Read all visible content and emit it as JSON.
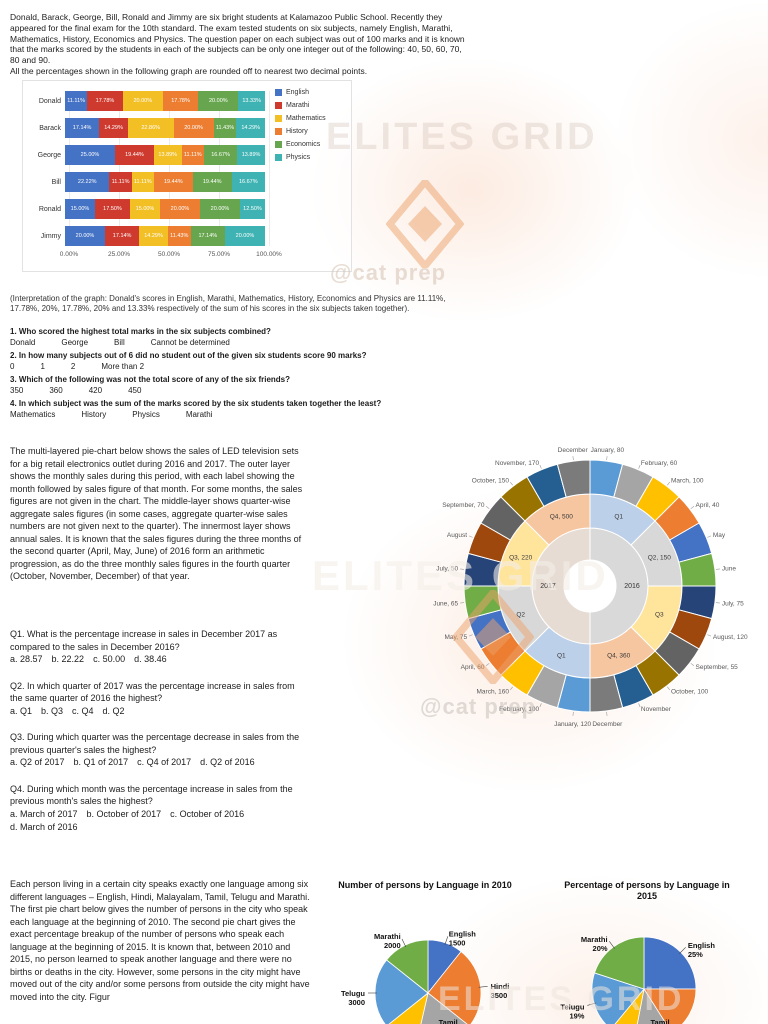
{
  "watermarks": {
    "brand": "ELITES GRID",
    "handle": "@cat prep"
  },
  "section_students": {
    "intro": "Donald, Barack, George, Bill, Ronald and Jimmy are six bright students at Kalamazoo Public School. Recently they appeared for the final exam for the 10th standard. The exam tested students on six subjects, namely English, Marathi, Mathematics, History, Economics and Physics. The question paper on each subject was out of 100 marks and it is known that the marks scored by the students in each of the subjects can be only one integer out of the following: 40, 50, 60, 70, 80 and 90.",
    "note": "All the percentages shown in the following graph are rounded off to nearest two decimal points.",
    "interpretation": "(Interpretation of the graph: Donald's scores in English, Marathi, Mathematics, History, Economics and Physics are 11.11%, 17.78%, 20%, 17.78%, 20% and 13.33% respectively of the sum of his scores in the six subjects taken together).",
    "questions": [
      {
        "text": "1. Who scored the highest total marks in the six subjects combined?",
        "options": [
          "Donald",
          "George",
          "Bill",
          "Cannot be determined"
        ]
      },
      {
        "text": "2. In how many subjects out of 6 did no student out of the given six students score 90 marks?",
        "options": [
          "0",
          "1",
          "2",
          "More than 2"
        ]
      },
      {
        "text": "3. Which of the following was not the total score of any of the six friends?",
        "options": [
          "350",
          "360",
          "420",
          "450"
        ]
      },
      {
        "text": "4. In which subject was the sum of the marks scored by the six students taken together the least?",
        "options": [
          "Mathematics",
          "History",
          "Physics",
          "Marathi"
        ]
      }
    ]
  },
  "section_tv": {
    "paragraph": "The multi-layered pie-chart below shows the sales of LED television sets for a big retail electronics outlet during 2016 and 2017. The outer layer shows the monthly sales during this period, with each label showing the month followed by sales figure of that month. For some months, the sales figures are not given in the chart. The middle-layer shows quarter-wise aggregate sales figures (in some cases, aggregate quarter-wise sales numbers are not given next to the quarter). The innermost layer shows annual sales. It is known that the sales figures during the three months of the second quarter (April, May, June) of 2016 form an arithmetic progression, as do the three monthly sales figures in the fourth quarter (October, November, December) of that year.",
    "questions": [
      {
        "text": "Q1. What is the percentage increase in sales in December 2017 as compared to the sales in December 2016?",
        "options": [
          "a. 28.57",
          "b. 22.22",
          "c. 50.00",
          "d. 38.46"
        ]
      },
      {
        "text": "Q2. In which quarter of 2017 was the percentage increase in sales from the same quarter of 2016 the highest?",
        "options": [
          "a. Q1",
          "b. Q3",
          "c. Q4",
          "d. Q2"
        ]
      },
      {
        "text": "Q3. During which quarter was the percentage decrease in sales from the previous quarter's sales the highest?",
        "options": [
          "a. Q2 of 2017",
          "b. Q1 of 2017",
          "c. Q4 of 2017",
          "d. Q2 of 2016"
        ]
      },
      {
        "text": "Q4. During which month was the percentage increase in sales from the previous month's sales the highest?",
        "options": [
          "a. March of 2017",
          "b. October of 2017",
          "c. October of 2016",
          "d. March of 2016"
        ]
      }
    ]
  },
  "section_language": {
    "paragraph": "Each person living in a certain city speaks exactly one language among six different languages – English, Hindi, Malayalam, Tamil, Telugu and Marathi. The first pie chart below gives the number of persons in the city who speak each language at the beginning of 2010. The second pie chart gives the exact percentage breakup of the number of persons who speak each language at the beginning of 2015. It is known that, between 2010 and 2015, no person learned to speak another language and there were no births or deaths in the city. However, some persons in the city might have moved out of the city and/or some persons from outside the city might have moved into the city. Figur"
  },
  "chart_data": [
    {
      "id": "subject-share-stacked-bar",
      "type": "bar",
      "stacked": true,
      "orientation": "horizontal",
      "categories": [
        "Donald",
        "Barack",
        "George",
        "Bill",
        "Ronald",
        "Jimmy"
      ],
      "series": [
        {
          "name": "English",
          "color": "#4472c4",
          "values": [
            11.11,
            17.14,
            25.0,
            22.22,
            15.0,
            20.0
          ]
        },
        {
          "name": "Marathi",
          "color": "#cf3a2f",
          "values": [
            17.78,
            14.29,
            19.44,
            11.11,
            17.5,
            17.14
          ]
        },
        {
          "name": "Mathematics",
          "color": "#f2bf24",
          "values": [
            20.0,
            22.86,
            13.89,
            11.11,
            15.0,
            14.29
          ]
        },
        {
          "name": "History",
          "color": "#ed7d31",
          "values": [
            17.78,
            20.0,
            11.11,
            19.44,
            20.0,
            11.43
          ]
        },
        {
          "name": "Economics",
          "color": "#67a64e",
          "values": [
            20.0,
            11.43,
            16.67,
            19.44,
            20.0,
            17.14
          ]
        },
        {
          "name": "Physics",
          "color": "#3fb3b3",
          "values": [
            13.33,
            14.29,
            13.89,
            16.67,
            12.5,
            20.0
          ]
        }
      ],
      "x_ticks": [
        "0.00%",
        "25.00%",
        "50.00%",
        "75.00%",
        "100.00%"
      ],
      "xlim": [
        0,
        100
      ],
      "value_suffix": "%"
    },
    {
      "id": "tv-sales-sunburst",
      "type": "pie",
      "subtype": "sunburst",
      "rings": [
        "year",
        "quarter",
        "month"
      ],
      "palette_months": [
        "#5b9bd5",
        "#a5a5a5",
        "#ffc000",
        "#ed7d31",
        "#4472c4",
        "#70ad47",
        "#264478",
        "#9e480e",
        "#636363",
        "#997300",
        "#255e91",
        "#7b7b7b"
      ],
      "palette_quarters": [
        "#bdd0e9",
        "#d8d8d8",
        "#ffe49c",
        "#f6c6a0"
      ],
      "palette_years": [
        "#d9d9d9",
        "#e7dcd3"
      ],
      "years": [
        {
          "name": "2016",
          "quarters": [
            {
              "name": "Q1",
              "value": null,
              "months": [
                {
                  "name": "January",
                  "value": 80
                },
                {
                  "name": "February",
                  "value": 60
                },
                {
                  "name": "March",
                  "value": 100
                }
              ]
            },
            {
              "name": "Q2",
              "value": 150,
              "months": [
                {
                  "name": "April",
                  "value": 40
                },
                {
                  "name": "May",
                  "value": null
                },
                {
                  "name": "June",
                  "value": null
                }
              ]
            },
            {
              "name": "Q3",
              "value": null,
              "months": [
                {
                  "name": "July",
                  "value": 75
                },
                {
                  "name": "August",
                  "value": 120
                },
                {
                  "name": "September",
                  "value": 55
                }
              ]
            },
            {
              "name": "Q4",
              "value": 360,
              "months": [
                {
                  "name": "October",
                  "value": 100
                },
                {
                  "name": "November",
                  "value": null
                },
                {
                  "name": "December",
                  "value": null
                }
              ]
            }
          ]
        },
        {
          "name": "2017",
          "quarters": [
            {
              "name": "Q1",
              "value": null,
              "months": [
                {
                  "name": "January",
                  "value": 120
                },
                {
                  "name": "February",
                  "value": 100
                },
                {
                  "name": "March",
                  "value": 160
                }
              ]
            },
            {
              "name": "Q2",
              "value": null,
              "months": [
                {
                  "name": "April",
                  "value": 60
                },
                {
                  "name": "May",
                  "value": 75
                },
                {
                  "name": "June",
                  "value": 65
                }
              ]
            },
            {
              "name": "Q3",
              "value": 220,
              "months": [
                {
                  "name": "July",
                  "value": 50
                },
                {
                  "name": "August",
                  "value": null
                },
                {
                  "name": "September",
                  "value": 70
                }
              ]
            },
            {
              "name": "Q4",
              "value": 500,
              "months": [
                {
                  "name": "October",
                  "value": 150
                },
                {
                  "name": "November",
                  "value": 170
                },
                {
                  "name": "December",
                  "value": null
                }
              ]
            }
          ]
        }
      ]
    },
    {
      "id": "language-2010-pie",
      "type": "pie",
      "title": "Number of persons by Language in 2010",
      "unit": "persons",
      "colors": [
        "#4472c4",
        "#ed7d31",
        "#a5a5a5",
        "#ffc000",
        "#5b9bd5",
        "#70ad47"
      ],
      "slices": [
        {
          "label": "English",
          "value": 1500,
          "label_visible": true
        },
        {
          "label": "Hindi",
          "value": 3500,
          "label_visible": true
        },
        {
          "label": "Tamil",
          "value": null,
          "label_visible": true
        },
        {
          "label": "Malayalam",
          "value": null,
          "label_visible": false
        },
        {
          "label": "Telugu",
          "value": 3000,
          "label_visible": true
        },
        {
          "label": "Marathi",
          "value": 2000,
          "label_visible": true
        }
      ]
    },
    {
      "id": "language-2015-pie",
      "type": "pie",
      "title": "Percentage of persons by Language in 2015",
      "unit": "%",
      "colors": [
        "#4472c4",
        "#ed7d31",
        "#a5a5a5",
        "#ffc000",
        "#5b9bd5",
        "#70ad47"
      ],
      "slices": [
        {
          "label": "English",
          "value": 25,
          "label_visible": true
        },
        {
          "label": "Hindi",
          "value": null,
          "label_visible": false
        },
        {
          "label": "Tamil",
          "value": null,
          "label_visible": true
        },
        {
          "label": "Malayalam",
          "value": null,
          "label_visible": false
        },
        {
          "label": "Telugu",
          "value": 19,
          "label_visible": true
        },
        {
          "label": "Marathi",
          "value": 20,
          "label_visible": true
        }
      ]
    }
  ]
}
